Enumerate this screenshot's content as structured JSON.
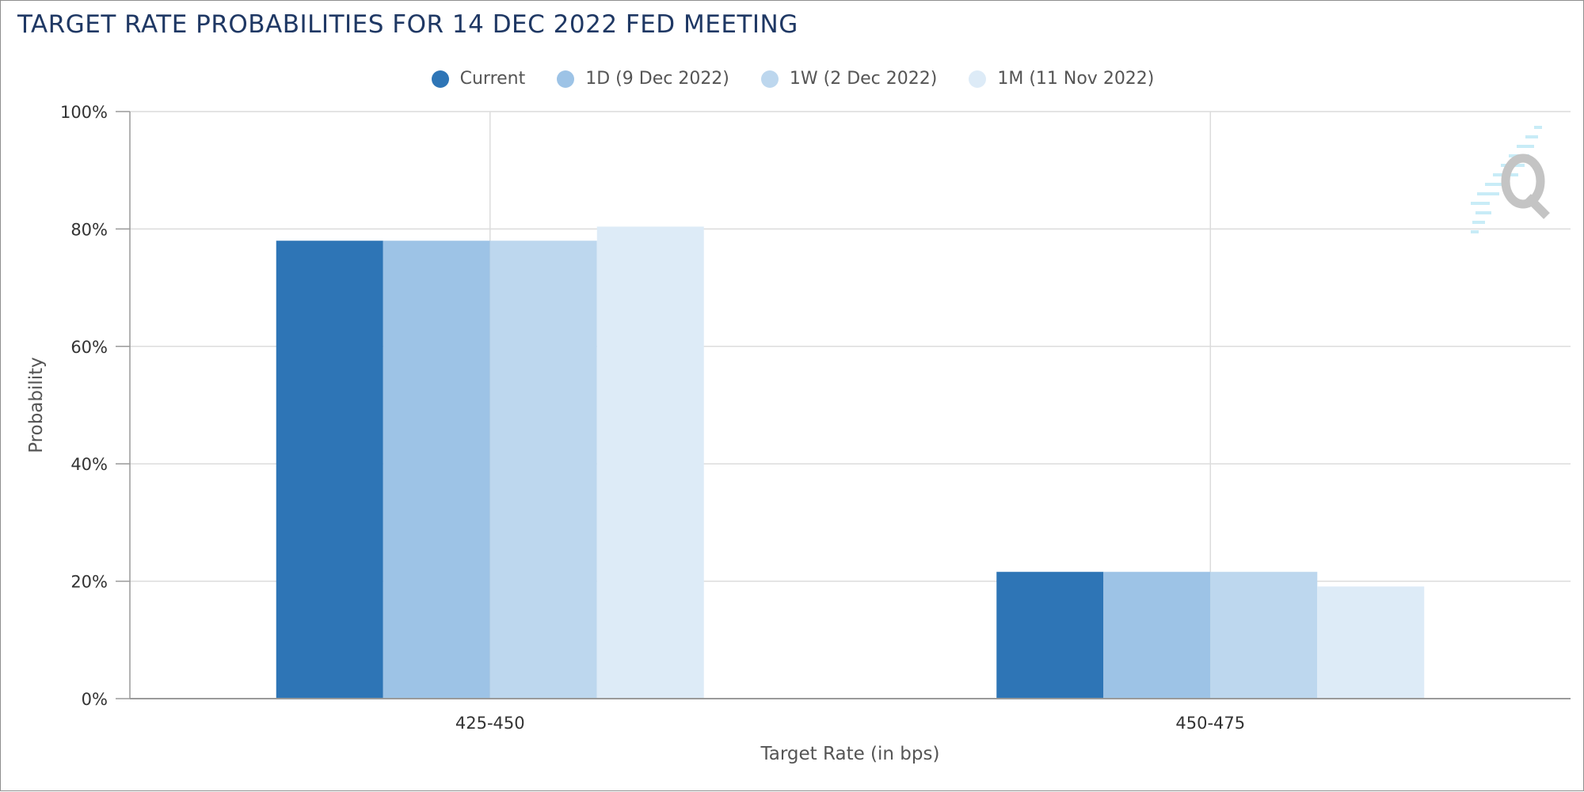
{
  "title": "TARGET RATE PROBABILITIES FOR 14 DEC 2022 FED MEETING",
  "legend": [
    {
      "label": "Current",
      "color": "#2e75b6"
    },
    {
      "label": "1D (9 Dec 2022)",
      "color": "#9dc3e6"
    },
    {
      "label": "1W (2 Dec 2022)",
      "color": "#bdd7ee"
    },
    {
      "label": "1M (11 Nov 2022)",
      "color": "#ddebf7"
    }
  ],
  "watermark_icon": "q-logo-icon",
  "chart_data": {
    "type": "bar",
    "title": "TARGET RATE PROBABILITIES FOR 14 DEC 2022 FED MEETING",
    "xlabel": "Target Rate (in bps)",
    "ylabel": "Probability",
    "categories": [
      "425-450",
      "450-475"
    ],
    "series": [
      {
        "name": "Current",
        "color": "#2e75b6",
        "values": [
          78.0,
          21.6
        ]
      },
      {
        "name": "1D (9 Dec 2022)",
        "color": "#9dc3e6",
        "values": [
          78.0,
          21.6
        ]
      },
      {
        "name": "1W (2 Dec 2022)",
        "color": "#bdd7ee",
        "values": [
          78.0,
          21.6
        ]
      },
      {
        "name": "1M (11 Nov 2022)",
        "color": "#ddebf7",
        "values": [
          80.4,
          19.1
        ]
      }
    ],
    "ylim": [
      0,
      100
    ],
    "yticks": [
      0,
      20,
      40,
      60,
      80,
      100
    ],
    "ytick_labels": [
      "0%",
      "20%",
      "40%",
      "60%",
      "80%",
      "100%"
    ],
    "grid": true,
    "legend_position": "top-center"
  }
}
